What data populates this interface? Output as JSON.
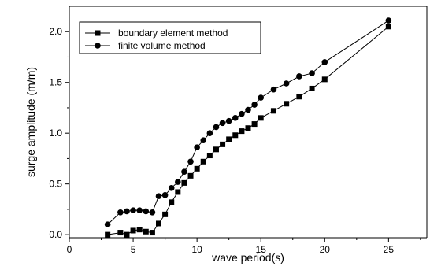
{
  "chart_data": {
    "type": "line",
    "title": "",
    "xlabel": "wave period(s)",
    "ylabel": "surge amplitude (m/m)",
    "xlim": [
      0,
      28
    ],
    "ylim": [
      -0.03,
      2.25
    ],
    "xticks": [
      "0",
      "5",
      "10",
      "15",
      "20",
      "25"
    ],
    "yticks": [
      "0.0",
      "0.5",
      "1.0",
      "1.5",
      "2.0"
    ],
    "grid": false,
    "legend_position": "top-left",
    "series": [
      {
        "name": "boundary element method",
        "marker": "square",
        "color": "#000000",
        "x": [
          3.0,
          4.0,
          4.5,
          5.0,
          5.5,
          6.0,
          6.5,
          7.0,
          7.5,
          8.0,
          8.5,
          9.0,
          9.5,
          10.0,
          10.5,
          11.0,
          11.5,
          12.0,
          12.5,
          13.0,
          13.5,
          14.0,
          14.5,
          15.0,
          16.0,
          17.0,
          18.0,
          19.0,
          20.0,
          25.0
        ],
        "y": [
          0.0,
          0.02,
          0.0,
          0.04,
          0.05,
          0.03,
          0.02,
          0.11,
          0.2,
          0.32,
          0.42,
          0.51,
          0.58,
          0.65,
          0.72,
          0.78,
          0.84,
          0.89,
          0.94,
          0.98,
          1.02,
          1.05,
          1.09,
          1.15,
          1.22,
          1.29,
          1.36,
          1.44,
          1.53,
          2.05
        ]
      },
      {
        "name": "finite volume method",
        "marker": "circle",
        "color": "#000000",
        "x": [
          3.0,
          4.0,
          4.5,
          5.0,
          5.5,
          6.0,
          6.5,
          7.0,
          7.5,
          8.0,
          8.5,
          9.0,
          9.5,
          10.0,
          10.5,
          11.0,
          11.5,
          12.0,
          12.5,
          13.0,
          13.5,
          14.0,
          14.5,
          15.0,
          16.0,
          17.0,
          18.0,
          19.0,
          20.0,
          25.0
        ],
        "y": [
          0.1,
          0.22,
          0.23,
          0.24,
          0.24,
          0.23,
          0.22,
          0.38,
          0.39,
          0.46,
          0.52,
          0.62,
          0.72,
          0.86,
          0.93,
          1.0,
          1.06,
          1.1,
          1.12,
          1.15,
          1.19,
          1.23,
          1.28,
          1.35,
          1.43,
          1.49,
          1.56,
          1.59,
          1.7,
          2.11
        ]
      }
    ]
  }
}
